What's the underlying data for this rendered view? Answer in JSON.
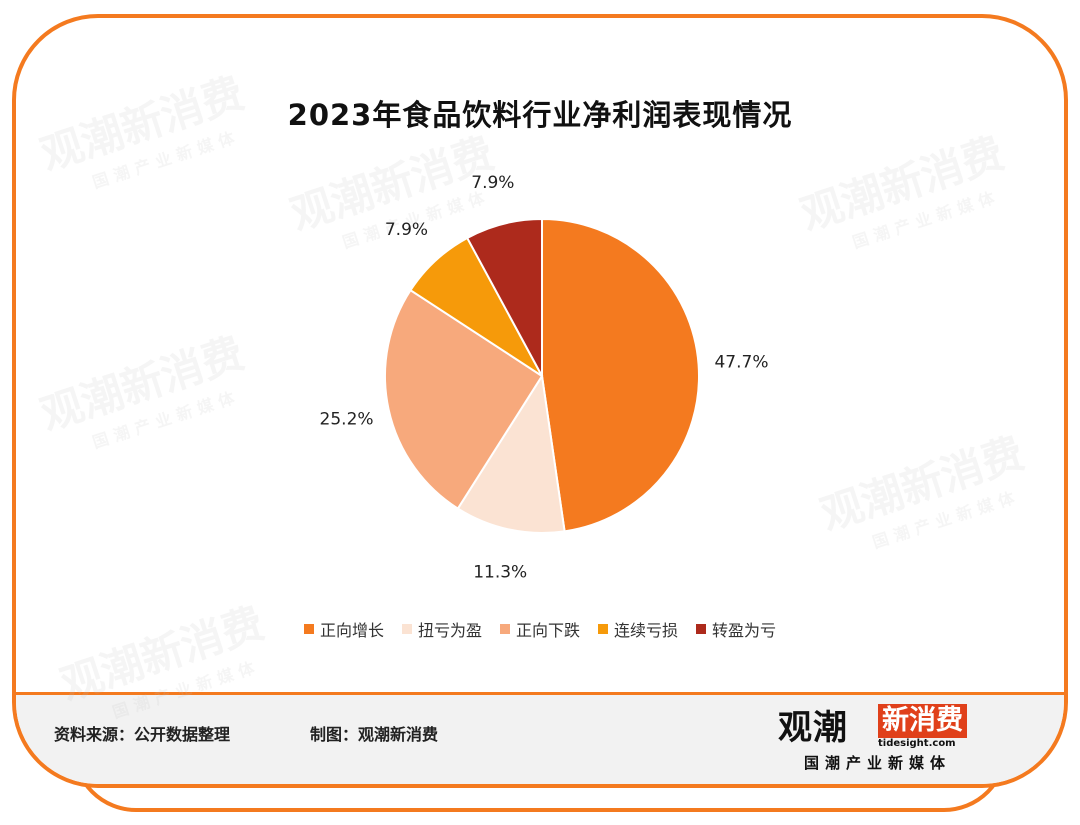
{
  "title": "2023年食品饮料行业净利润表现情况",
  "chart_data": {
    "type": "pie",
    "title": "2023年食品饮料行业净利润表现情况",
    "start_angle_deg": 0,
    "direction": "clockwise",
    "legend_position": "bottom",
    "slices": [
      {
        "label": "正向增长",
        "value": 47.7,
        "display": "47.7%",
        "color": "#f47a1f"
      },
      {
        "label": "扭亏为盈",
        "value": 11.3,
        "display": "11.3%",
        "color": "#fbe3d3"
      },
      {
        "label": "正向下跌",
        "value": 25.2,
        "display": "25.2%",
        "color": "#f7a97c"
      },
      {
        "label": "连续亏损",
        "value": 7.9,
        "display": "7.9%",
        "color": "#f69a0a"
      },
      {
        "label": "转盈为亏",
        "value": 7.9,
        "display": "7.9%",
        "color": "#ad2a1c"
      }
    ]
  },
  "footer": {
    "source": "资料来源：公开数据整理",
    "maker": "制图：观潮新消费"
  },
  "logo": {
    "main": "观潮",
    "box": "新消费",
    "url": "tidesight.com",
    "sub": "国潮产业新媒体"
  },
  "watermark": {
    "main": "观潮新消费",
    "sub": "国潮产业新媒体"
  },
  "colors": {
    "accent": "#f47a1f",
    "footer_bg": "#f2f2f2",
    "logo_red": "#e0401a"
  }
}
